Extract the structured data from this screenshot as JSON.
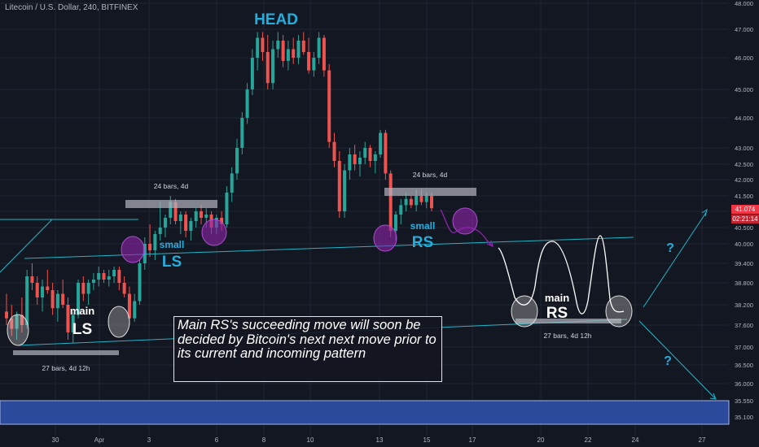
{
  "header": {
    "title": "Litecoin / U.S. Dollar, 240, BITFINEX"
  },
  "annotations": {
    "head": "HEAD",
    "small_ls_top": "small",
    "small_ls_bottom": "LS",
    "small_rs_top": "small",
    "small_rs_bottom": "RS",
    "main_ls_top": "main",
    "main_ls_bottom": "LS",
    "main_rs_top": "main",
    "main_rs_bottom": "RS",
    "bars_label_1": "24 bars, 4d",
    "bars_label_2": "24 bars, 4d",
    "bars_label_3": "27 bars, 4d 12h",
    "bars_label_4": "27 bars, 4d 12h",
    "question_1": "?",
    "question_2": "?",
    "note": "Main RS's succeeding move will soon be decided by Bitcoin's next next move prior to its current and incoming pattern"
  },
  "price_tags": {
    "current": "41.074",
    "countdown": "02:21:14"
  },
  "colors": {
    "background": "#131722",
    "up": "#26a69a",
    "down": "#ef5350",
    "trendline": "#22b5c8",
    "accent_text": "#24aede",
    "purple": "#8e24aa",
    "zone": "#3f5fbf"
  },
  "chart_data": {
    "type": "candlestick",
    "title": "Litecoin / U.S. Dollar, 240, BITFINEX",
    "xlabel": "",
    "ylabel": "",
    "ylim": [
      34.85,
      48.0
    ],
    "y_ticks": [
      "48.000",
      "47.000",
      "46.000",
      "45.000",
      "44.000",
      "43.000",
      "42.500",
      "42.000",
      "41.500",
      "41.000",
      "40.500",
      "40.000",
      "39.400",
      "38.800",
      "38.200",
      "37.600",
      "37.000",
      "36.500",
      "36.000",
      "35.550",
      "35.100"
    ],
    "x_ticks": [
      "30",
      "Apr",
      "3",
      "6",
      "8",
      "10",
      "13",
      "15",
      "17",
      "20",
      "22",
      "24",
      "27"
    ],
    "candles": [
      {
        "o": 38.0,
        "h": 38.5,
        "l": 37.6,
        "c": 37.8
      },
      {
        "o": 37.8,
        "h": 38.2,
        "l": 37.3,
        "c": 37.5
      },
      {
        "o": 37.5,
        "h": 38.0,
        "l": 37.2,
        "c": 37.9
      },
      {
        "o": 37.9,
        "h": 38.4,
        "l": 37.4,
        "c": 37.6
      },
      {
        "o": 37.6,
        "h": 39.2,
        "l": 37.5,
        "c": 39.0
      },
      {
        "o": 39.0,
        "h": 39.4,
        "l": 38.6,
        "c": 38.8
      },
      {
        "o": 38.8,
        "h": 39.0,
        "l": 38.2,
        "c": 38.4
      },
      {
        "o": 38.4,
        "h": 38.9,
        "l": 38.0,
        "c": 38.7
      },
      {
        "o": 38.7,
        "h": 39.2,
        "l": 38.5,
        "c": 38.6
      },
      {
        "o": 38.6,
        "h": 38.8,
        "l": 37.9,
        "c": 38.1
      },
      {
        "o": 38.1,
        "h": 38.6,
        "l": 37.7,
        "c": 38.5
      },
      {
        "o": 38.5,
        "h": 38.9,
        "l": 38.1,
        "c": 38.2
      },
      {
        "o": 38.2,
        "h": 38.4,
        "l": 37.2,
        "c": 37.4
      },
      {
        "o": 37.4,
        "h": 38.0,
        "l": 37.1,
        "c": 37.9
      },
      {
        "o": 37.9,
        "h": 38.9,
        "l": 37.8,
        "c": 38.8
      },
      {
        "o": 38.8,
        "h": 39.0,
        "l": 38.3,
        "c": 38.5
      },
      {
        "o": 38.5,
        "h": 38.9,
        "l": 38.2,
        "c": 38.8
      },
      {
        "o": 38.8,
        "h": 39.1,
        "l": 38.6,
        "c": 38.9
      },
      {
        "o": 38.9,
        "h": 39.3,
        "l": 38.7,
        "c": 39.1
      },
      {
        "o": 39.1,
        "h": 39.2,
        "l": 38.8,
        "c": 38.9
      },
      {
        "o": 38.9,
        "h": 39.2,
        "l": 38.7,
        "c": 39.0
      },
      {
        "o": 39.0,
        "h": 39.3,
        "l": 38.8,
        "c": 39.2
      },
      {
        "o": 39.2,
        "h": 39.3,
        "l": 38.6,
        "c": 38.8
      },
      {
        "o": 38.8,
        "h": 39.0,
        "l": 38.4,
        "c": 38.5
      },
      {
        "o": 38.5,
        "h": 38.7,
        "l": 37.6,
        "c": 37.8
      },
      {
        "o": 37.8,
        "h": 38.5,
        "l": 37.7,
        "c": 38.3
      },
      {
        "o": 38.3,
        "h": 39.5,
        "l": 38.2,
        "c": 39.4
      },
      {
        "o": 39.4,
        "h": 40.2,
        "l": 39.2,
        "c": 40.0
      },
      {
        "o": 40.0,
        "h": 40.6,
        "l": 39.6,
        "c": 39.8
      },
      {
        "o": 39.8,
        "h": 40.4,
        "l": 39.5,
        "c": 40.3
      },
      {
        "o": 40.3,
        "h": 41.3,
        "l": 40.1,
        "c": 40.5
      },
      {
        "o": 40.5,
        "h": 40.9,
        "l": 40.2,
        "c": 40.8
      },
      {
        "o": 40.8,
        "h": 41.5,
        "l": 40.6,
        "c": 41.3
      },
      {
        "o": 41.3,
        "h": 41.4,
        "l": 40.6,
        "c": 40.7
      },
      {
        "o": 40.7,
        "h": 41.0,
        "l": 40.3,
        "c": 40.9
      },
      {
        "o": 40.9,
        "h": 41.0,
        "l": 40.2,
        "c": 40.4
      },
      {
        "o": 40.4,
        "h": 40.8,
        "l": 40.1,
        "c": 40.7
      },
      {
        "o": 40.7,
        "h": 41.1,
        "l": 40.5,
        "c": 41.0
      },
      {
        "o": 41.0,
        "h": 41.2,
        "l": 40.6,
        "c": 40.8
      },
      {
        "o": 40.8,
        "h": 41.1,
        "l": 40.5,
        "c": 40.9
      },
      {
        "o": 40.9,
        "h": 41.0,
        "l": 40.3,
        "c": 40.5
      },
      {
        "o": 40.5,
        "h": 40.9,
        "l": 40.3,
        "c": 40.8
      },
      {
        "o": 40.8,
        "h": 41.0,
        "l": 40.4,
        "c": 40.6
      },
      {
        "o": 40.6,
        "h": 41.8,
        "l": 40.5,
        "c": 41.6
      },
      {
        "o": 41.6,
        "h": 42.4,
        "l": 41.3,
        "c": 42.2
      },
      {
        "o": 42.2,
        "h": 43.3,
        "l": 42.0,
        "c": 43.0
      },
      {
        "o": 43.0,
        "h": 44.2,
        "l": 42.8,
        "c": 44.0
      },
      {
        "o": 44.0,
        "h": 45.2,
        "l": 43.8,
        "c": 45.0
      },
      {
        "o": 45.0,
        "h": 46.3,
        "l": 44.8,
        "c": 46.0
      },
      {
        "o": 46.0,
        "h": 46.9,
        "l": 45.6,
        "c": 46.7
      },
      {
        "o": 46.7,
        "h": 46.9,
        "l": 45.9,
        "c": 46.2
      },
      {
        "o": 46.2,
        "h": 46.8,
        "l": 45.0,
        "c": 45.2
      },
      {
        "o": 45.2,
        "h": 46.6,
        "l": 45.0,
        "c": 46.3
      },
      {
        "o": 46.3,
        "h": 46.9,
        "l": 46.0,
        "c": 46.6
      },
      {
        "o": 46.6,
        "h": 46.8,
        "l": 45.7,
        "c": 45.9
      },
      {
        "o": 45.9,
        "h": 46.6,
        "l": 45.6,
        "c": 46.3
      },
      {
        "o": 46.3,
        "h": 46.7,
        "l": 45.8,
        "c": 46.0
      },
      {
        "o": 46.0,
        "h": 46.8,
        "l": 45.8,
        "c": 46.6
      },
      {
        "o": 46.6,
        "h": 46.9,
        "l": 46.1,
        "c": 46.2
      },
      {
        "o": 46.2,
        "h": 46.7,
        "l": 45.5,
        "c": 45.6
      },
      {
        "o": 45.6,
        "h": 46.2,
        "l": 45.4,
        "c": 46.0
      },
      {
        "o": 46.0,
        "h": 46.9,
        "l": 45.8,
        "c": 46.7
      },
      {
        "o": 46.7,
        "h": 46.8,
        "l": 45.4,
        "c": 45.6
      },
      {
        "o": 45.6,
        "h": 45.8,
        "l": 43.0,
        "c": 43.2
      },
      {
        "o": 43.2,
        "h": 43.5,
        "l": 42.4,
        "c": 42.6
      },
      {
        "o": 42.6,
        "h": 42.9,
        "l": 40.8,
        "c": 41.0
      },
      {
        "o": 41.0,
        "h": 42.5,
        "l": 40.8,
        "c": 42.3
      },
      {
        "o": 42.3,
        "h": 43.0,
        "l": 42.0,
        "c": 42.8
      },
      {
        "o": 42.8,
        "h": 43.1,
        "l": 42.3,
        "c": 42.5
      },
      {
        "o": 42.5,
        "h": 42.9,
        "l": 42.1,
        "c": 42.7
      },
      {
        "o": 42.7,
        "h": 43.2,
        "l": 42.5,
        "c": 43.0
      },
      {
        "o": 43.0,
        "h": 43.1,
        "l": 42.4,
        "c": 42.6
      },
      {
        "o": 42.6,
        "h": 42.9,
        "l": 42.2,
        "c": 42.8
      },
      {
        "o": 42.8,
        "h": 43.6,
        "l": 42.7,
        "c": 43.5
      },
      {
        "o": 43.5,
        "h": 43.6,
        "l": 42.0,
        "c": 42.2
      },
      {
        "o": 42.2,
        "h": 42.3,
        "l": 40.2,
        "c": 40.4
      },
      {
        "o": 40.4,
        "h": 41.0,
        "l": 40.1,
        "c": 40.9
      },
      {
        "o": 40.9,
        "h": 41.4,
        "l": 40.6,
        "c": 41.2
      },
      {
        "o": 41.2,
        "h": 41.6,
        "l": 41.0,
        "c": 41.4
      },
      {
        "o": 41.4,
        "h": 41.5,
        "l": 41.1,
        "c": 41.2
      },
      {
        "o": 41.2,
        "h": 41.7,
        "l": 41.0,
        "c": 41.5
      },
      {
        "o": 41.5,
        "h": 41.7,
        "l": 41.2,
        "c": 41.3
      },
      {
        "o": 41.3,
        "h": 41.6,
        "l": 41.1,
        "c": 41.5
      },
      {
        "o": 41.5,
        "h": 41.6,
        "l": 41.0,
        "c": 41.1
      }
    ],
    "trendlines": [
      {
        "name": "neckline",
        "from": {
          "x": "28",
          "y": 39.6
        },
        "to": {
          "x": "25",
          "y": 40.15
        }
      },
      {
        "name": "lower-channel",
        "from": {
          "x": "28",
          "y": 37.0
        },
        "to": {
          "x": "24",
          "y": 37.85
        }
      }
    ],
    "support_zone": [
      35.05,
      35.55
    ]
  }
}
